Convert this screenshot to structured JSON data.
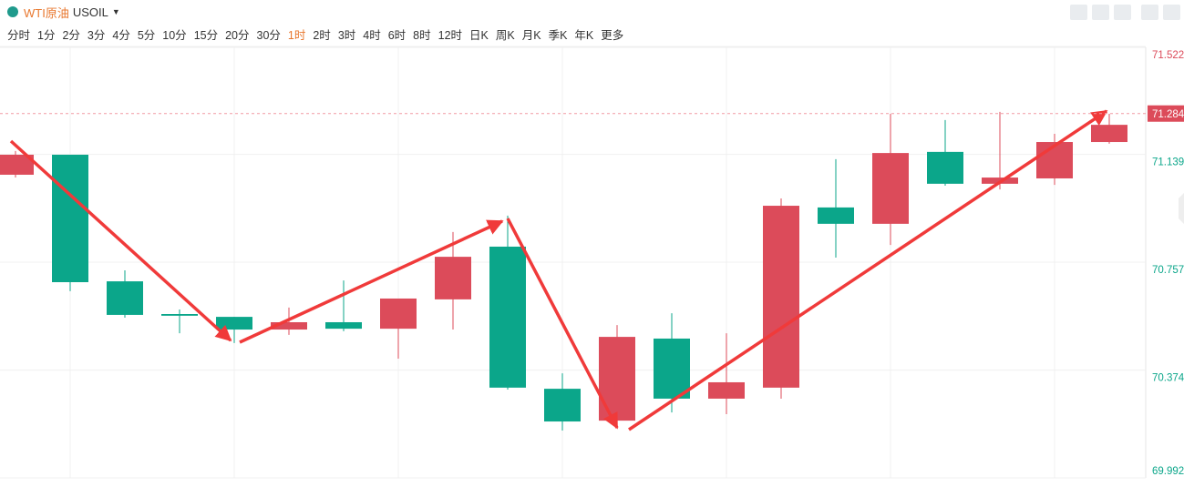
{
  "header": {
    "title": "WTI原油",
    "symbol": "USOIL",
    "timeframes": [
      "分时",
      "1分",
      "2分",
      "3分",
      "4分",
      "5分",
      "10分",
      "15分",
      "20分",
      "30分",
      "1时",
      "2时",
      "3时",
      "4时",
      "6时",
      "8时",
      "12时",
      "日K",
      "周K",
      "月K",
      "季K",
      "年K",
      "更多"
    ],
    "active": "1时"
  },
  "chart_data": {
    "type": "candlestick",
    "open": [
      71.067,
      71.138,
      70.689,
      70.573,
      70.563,
      70.518,
      70.544,
      70.521,
      70.625,
      70.812,
      70.308,
      70.195,
      70.486,
      70.273,
      70.312,
      70.951,
      70.893,
      71.148,
      71.035,
      71.054,
      71.183
    ],
    "high": [
      71.151,
      71.138,
      70.728,
      70.589,
      70.563,
      70.596,
      70.692,
      70.628,
      70.864,
      70.922,
      70.363,
      70.534,
      70.576,
      70.505,
      70.983,
      71.122,
      71.283,
      71.261,
      71.29,
      71.212,
      71.283
    ],
    "low": [
      71.057,
      70.654,
      70.56,
      70.505,
      70.47,
      70.499,
      70.512,
      70.415,
      70.518,
      70.305,
      70.16,
      70.186,
      70.224,
      70.218,
      70.273,
      70.773,
      70.818,
      71.028,
      71.015,
      71.031,
      71.177
    ],
    "close": [
      71.138,
      70.686,
      70.57,
      70.567,
      70.518,
      70.544,
      70.521,
      70.628,
      70.776,
      70.312,
      70.192,
      70.492,
      70.273,
      70.331,
      70.957,
      70.893,
      71.144,
      71.035,
      71.057,
      71.183,
      71.244
    ],
    "up_color": "#dc4b5a",
    "down_color": "#0ba68a",
    "ylim": [
      69.992,
      71.522
    ],
    "yticks": [
      69.992,
      70.374,
      70.757,
      71.139,
      71.522
    ],
    "grid": true,
    "last_price": 71.284
  }
}
